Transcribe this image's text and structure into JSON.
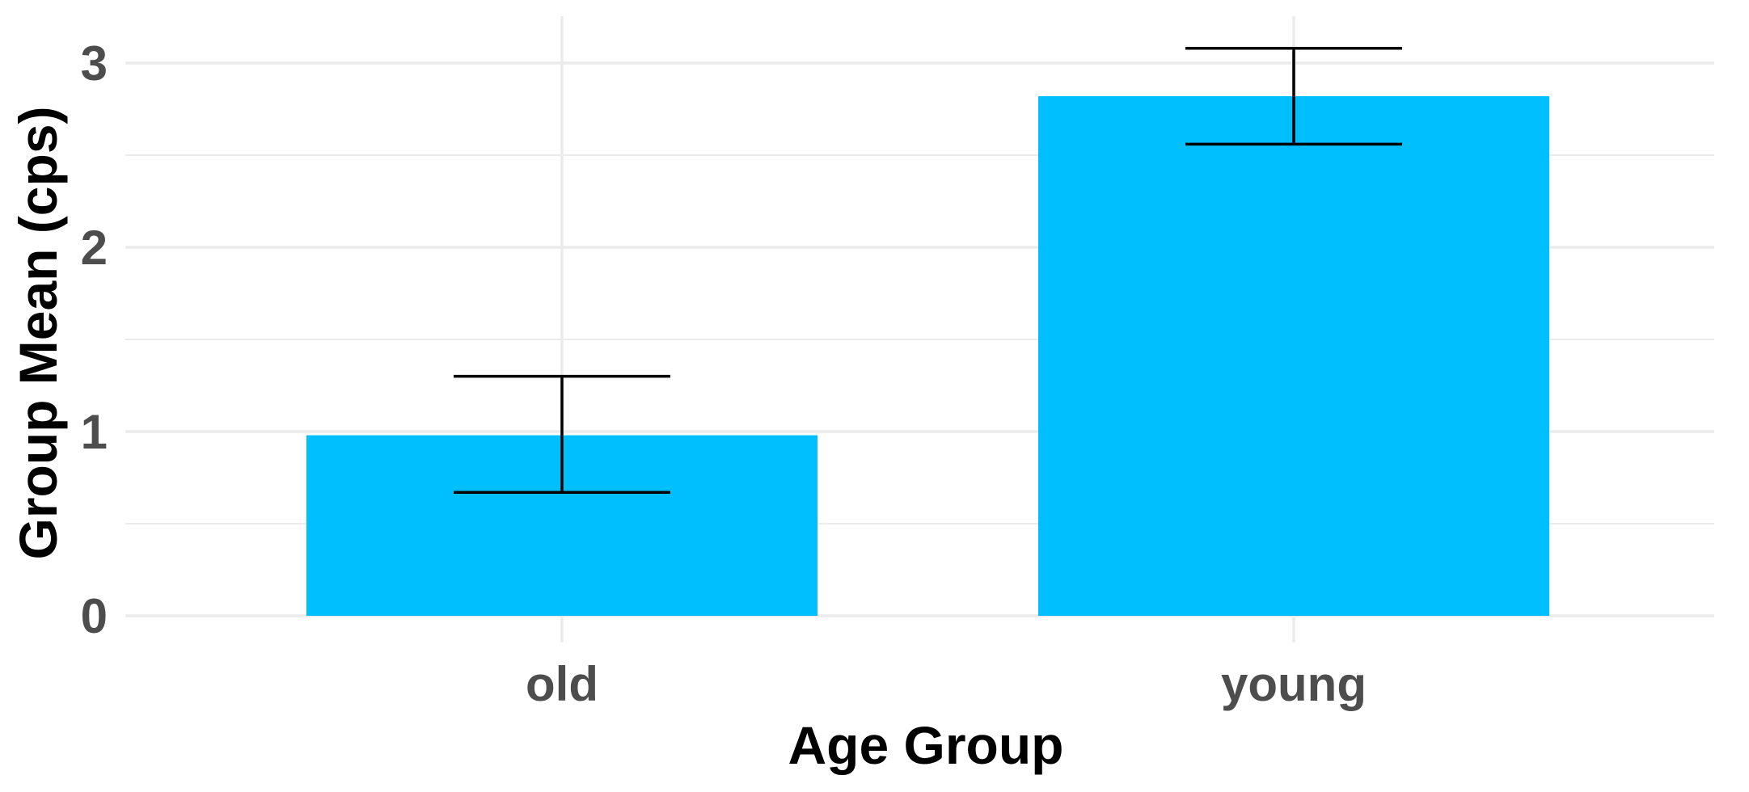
{
  "chart_data": {
    "type": "bar",
    "categories": [
      "old",
      "young"
    ],
    "values": [
      0.98,
      2.82
    ],
    "error_bars": [
      {
        "lower": 0.67,
        "upper": 1.3
      },
      {
        "lower": 2.56,
        "upper": 3.08
      }
    ],
    "xlabel": "Age Group",
    "ylabel": "Group Mean (cps)",
    "ylim": [
      0,
      3.2
    ],
    "yticks": [
      0,
      1,
      2,
      3
    ],
    "grid": true,
    "bar_color": "#00BFFF",
    "error_bar_color": "#000000",
    "grid_color": "#EBEBEB"
  }
}
